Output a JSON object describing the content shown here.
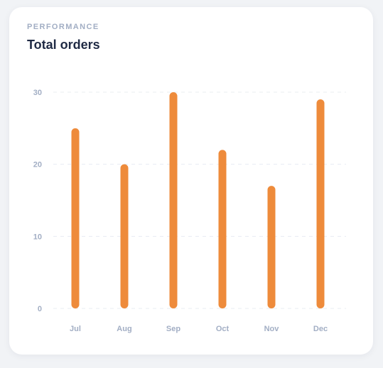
{
  "card": {
    "overline": "PERFORMANCE",
    "title": "Total orders"
  },
  "colors": {
    "bar": "#ee8b3b",
    "grid": "#e8ecf2",
    "tick": "#a2aec4",
    "title": "#1f2a44"
  },
  "chart_data": {
    "type": "bar",
    "title": "Total orders",
    "categories": [
      "Jul",
      "Aug",
      "Sep",
      "Oct",
      "Nov",
      "Dec"
    ],
    "values": [
      25,
      20,
      30,
      22,
      17,
      29
    ],
    "xlabel": "",
    "ylabel": "",
    "ylim": [
      0,
      30
    ],
    "yticks": [
      0,
      10,
      20,
      30
    ],
    "grid": true,
    "legend": "none"
  }
}
